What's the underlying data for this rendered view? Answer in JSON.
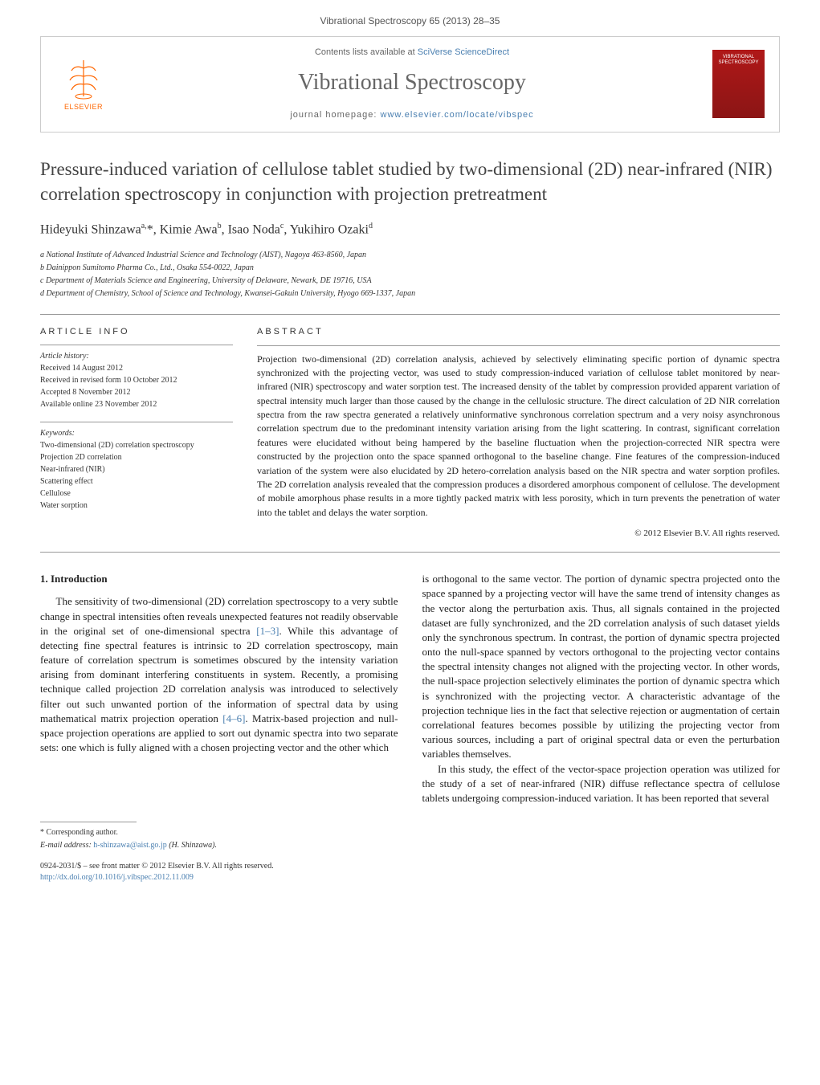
{
  "header": {
    "banner": "Vibrational Spectroscopy 65 (2013) 28–35",
    "publisher": "ELSEVIER",
    "contents_prefix": "Contents lists available at ",
    "contents_link": "SciVerse ScienceDirect",
    "journal_name": "Vibrational Spectroscopy",
    "homepage_prefix": "journal homepage: ",
    "homepage_url": "www.elsevier.com/locate/vibspec",
    "cover_title": "VIBRATIONAL SPECTROSCOPY"
  },
  "article": {
    "title": "Pressure-induced variation of cellulose tablet studied by two-dimensional (2D) near-infrared (NIR) correlation spectroscopy in conjunction with projection pretreatment",
    "authors_html": "Hideyuki Shinzawa<sup>a,</sup>*, Kimie Awa<sup>b</sup>, Isao Noda<sup>c</sup>, Yukihiro Ozaki<sup>d</sup>",
    "affiliations": [
      "a National Institute of Advanced Industrial Science and Technology (AIST), Nagoya 463-8560, Japan",
      "b Dainippon Sumitomo Pharma Co., Ltd., Osaka 554-0022, Japan",
      "c Department of Materials Science and Engineering, University of Delaware, Newark, DE 19716, USA",
      "d Department of Chemistry, School of Science and Technology, Kwansei-Gakuin University, Hyogo 669-1337, Japan"
    ]
  },
  "article_info": {
    "heading": "ARTICLE INFO",
    "history_label": "Article history:",
    "history": [
      "Received 14 August 2012",
      "Received in revised form 10 October 2012",
      "Accepted 8 November 2012",
      "Available online 23 November 2012"
    ],
    "keywords_label": "Keywords:",
    "keywords": [
      "Two-dimensional (2D) correlation spectroscopy",
      "Projection 2D correlation",
      "Near-infrared (NIR)",
      "Scattering effect",
      "Cellulose",
      "Water sorption"
    ]
  },
  "abstract": {
    "heading": "ABSTRACT",
    "text": "Projection two-dimensional (2D) correlation analysis, achieved by selectively eliminating specific portion of dynamic spectra synchronized with the projecting vector, was used to study compression-induced variation of cellulose tablet monitored by near-infrared (NIR) spectroscopy and water sorption test. The increased density of the tablet by compression provided apparent variation of spectral intensity much larger than those caused by the change in the cellulosic structure. The direct calculation of 2D NIR correlation spectra from the raw spectra generated a relatively uninformative synchronous correlation spectrum and a very noisy asynchronous correlation spectrum due to the predominant intensity variation arising from the light scattering. In contrast, significant correlation features were elucidated without being hampered by the baseline fluctuation when the projection-corrected NIR spectra were constructed by the projection onto the space spanned orthogonal to the baseline change. Fine features of the compression-induced variation of the system were also elucidated by 2D hetero-correlation analysis based on the NIR spectra and water sorption profiles. The 2D correlation analysis revealed that the compression produces a disordered amorphous component of cellulose. The development of mobile amorphous phase results in a more tightly packed matrix with less porosity, which in turn prevents the penetration of water into the tablet and delays the water sorption.",
    "copyright": "© 2012 Elsevier B.V. All rights reserved."
  },
  "body": {
    "section_heading": "1. Introduction",
    "col1_p1_a": "The sensitivity of two-dimensional (2D) correlation spectroscopy to a very subtle change in spectral intensities often reveals unexpected features not readily observable in the original set of one-dimensional spectra ",
    "col1_ref1": "[1–3]",
    "col1_p1_b": ". While this advantage of detecting fine spectral features is intrinsic to 2D correlation spectroscopy, main feature of correlation spectrum is sometimes obscured by the intensity variation arising from dominant interfering constituents in system. Recently, a promising technique called projection 2D correlation analysis was introduced to selectively filter out such unwanted portion of the information of spectral data by using mathematical matrix projection operation ",
    "col1_ref2": "[4–6]",
    "col1_p1_c": ". Matrix-based projection and null-space projection operations are applied to sort out dynamic spectra into two separate sets: one which is fully aligned with a chosen projecting vector and the other which",
    "col2_p1": "is orthogonal to the same vector. The portion of dynamic spectra projected onto the space spanned by a projecting vector will have the same trend of intensity changes as the vector along the perturbation axis. Thus, all signals contained in the projected dataset are fully synchronized, and the 2D correlation analysis of such dataset yields only the synchronous spectrum. In contrast, the portion of dynamic spectra projected onto the null-space spanned by vectors orthogonal to the projecting vector contains the spectral intensity changes not aligned with the projecting vector. In other words, the null-space projection selectively eliminates the portion of dynamic spectra which is synchronized with the projecting vector. A characteristic advantage of the projection technique lies in the fact that selective rejection or augmentation of certain correlational features becomes possible by utilizing the projecting vector from various sources, including a part of original spectral data or even the perturbation variables themselves.",
    "col2_p2": "In this study, the effect of the vector-space projection operation was utilized for the study of a set of near-infrared (NIR) diffuse reflectance spectra of cellulose tablets undergoing compression-induced variation. It has been reported that several"
  },
  "footer": {
    "corr_label": "* Corresponding author.",
    "email_label": "E-mail address: ",
    "email": "h-shinzawa@aist.go.jp",
    "email_suffix": " (H. Shinzawa).",
    "issn_line": "0924-2031/$ – see front matter © 2012 Elsevier B.V. All rights reserved.",
    "doi_url": "http://dx.doi.org/10.1016/j.vibspec.2012.11.009"
  },
  "colors": {
    "link": "#4a7fb0",
    "publisher_orange": "#ff6600",
    "cover_red": "#b01818"
  }
}
